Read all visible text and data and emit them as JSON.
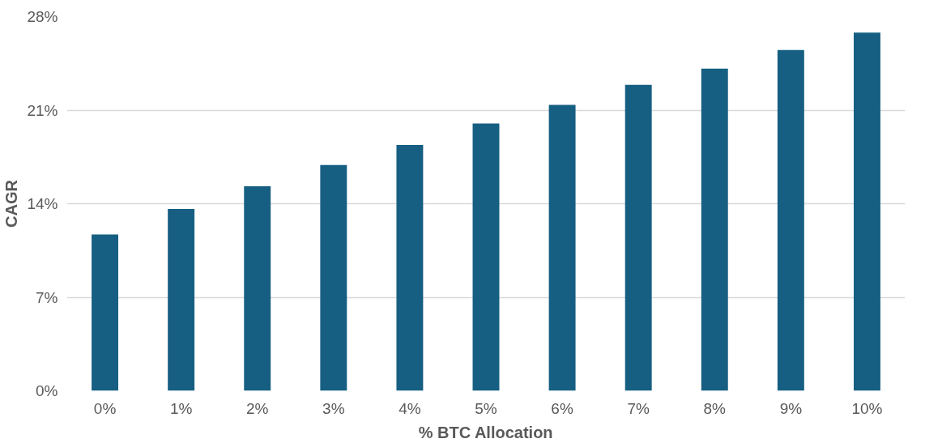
{
  "chart_data": {
    "type": "bar",
    "xlabel": "% BTC Allocation",
    "ylabel": "CAGR",
    "categories": [
      "0%",
      "1%",
      "2%",
      "3%",
      "4%",
      "5%",
      "6%",
      "7%",
      "8%",
      "9%",
      "10%"
    ],
    "values": [
      11.7,
      13.6,
      15.3,
      16.9,
      18.4,
      20.0,
      21.4,
      22.9,
      24.1,
      25.5,
      26.8
    ],
    "color": "#165f82",
    "ylim": [
      0,
      28
    ],
    "yticks": [
      {
        "value": 0,
        "label": "0%"
      },
      {
        "value": 7,
        "label": "7%"
      },
      {
        "value": 14,
        "label": "14%"
      },
      {
        "value": 21,
        "label": "21%"
      },
      {
        "value": 28,
        "label": "28%"
      }
    ],
    "grid": "y"
  }
}
